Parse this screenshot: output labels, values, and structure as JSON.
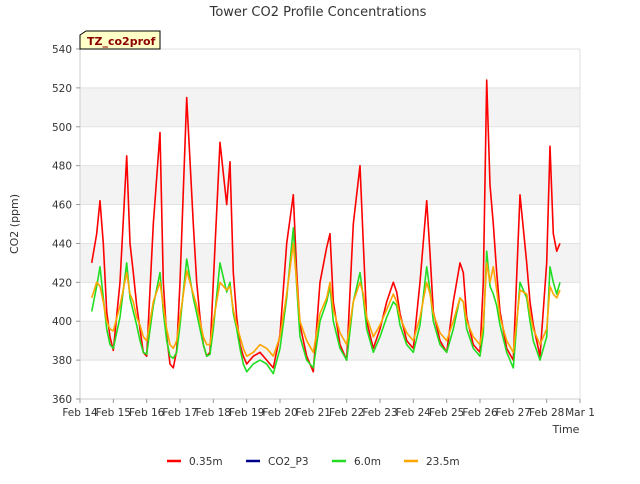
{
  "chart_data": {
    "type": "line",
    "title": "Tower CO2 Profile Concentrations",
    "badge": "TZ_co2prof",
    "xlabel": "Time",
    "ylabel": "CO2 (ppm)",
    "ylim": [
      360,
      540
    ],
    "yticks": [
      360,
      380,
      400,
      420,
      440,
      460,
      480,
      500,
      520,
      540
    ],
    "xlim": [
      0,
      15
    ],
    "x_units": "days since Feb 14",
    "xticks": [
      {
        "pos": 0,
        "label": "Feb 14"
      },
      {
        "pos": 1,
        "label": "Feb 15"
      },
      {
        "pos": 2,
        "label": "Feb 16"
      },
      {
        "pos": 3,
        "label": "Feb 17"
      },
      {
        "pos": 4,
        "label": "Feb 18"
      },
      {
        "pos": 5,
        "label": "Feb 19"
      },
      {
        "pos": 6,
        "label": "Feb 20"
      },
      {
        "pos": 7,
        "label": "Feb 21"
      },
      {
        "pos": 8,
        "label": "Feb 22"
      },
      {
        "pos": 9,
        "label": "Feb 23"
      },
      {
        "pos": 10,
        "label": "Feb 24"
      },
      {
        "pos": 11,
        "label": "Feb 25"
      },
      {
        "pos": 12,
        "label": "Feb 26"
      },
      {
        "pos": 13,
        "label": "Feb 27"
      },
      {
        "pos": 14,
        "label": "Feb 28"
      },
      {
        "pos": 15,
        "label": "Mar 1"
      }
    ],
    "grid": true,
    "legend_position": "bottom-center",
    "series": [
      {
        "name": "0.35m",
        "color": "#ff0000",
        "x": [
          0.35,
          0.5,
          0.6,
          0.7,
          0.8,
          0.9,
          1.0,
          1.2,
          1.4,
          1.5,
          1.6,
          1.7,
          1.8,
          1.9,
          2.0,
          2.2,
          2.4,
          2.5,
          2.6,
          2.7,
          2.8,
          2.9,
          3.0,
          3.2,
          3.4,
          3.5,
          3.6,
          3.7,
          3.8,
          3.9,
          4.0,
          4.2,
          4.4,
          4.5,
          4.6,
          4.7,
          4.8,
          4.9,
          5.0,
          5.2,
          5.4,
          5.6,
          5.8,
          6.0,
          6.2,
          6.4,
          6.5,
          6.6,
          6.8,
          7.0,
          7.2,
          7.4,
          7.5,
          7.6,
          7.8,
          8.0,
          8.2,
          8.4,
          8.5,
          8.6,
          8.8,
          9.0,
          9.2,
          9.4,
          9.5,
          9.6,
          9.8,
          10.0,
          10.2,
          10.4,
          10.5,
          10.6,
          10.8,
          11.0,
          11.2,
          11.4,
          11.5,
          11.6,
          11.8,
          12.0,
          12.1,
          12.2,
          12.3,
          12.4,
          12.5,
          12.6,
          12.8,
          13.0,
          13.2,
          13.4,
          13.5,
          13.6,
          13.8,
          14.0,
          14.1,
          14.2,
          14.3,
          14.4
        ],
        "y": [
          430,
          445,
          462,
          440,
          405,
          392,
          385,
          420,
          485,
          440,
          425,
          408,
          396,
          384,
          382,
          450,
          497,
          420,
          392,
          378,
          376,
          385,
          420,
          515,
          450,
          420,
          402,
          388,
          382,
          384,
          420,
          492,
          460,
          482,
          425,
          402,
          388,
          382,
          378,
          382,
          384,
          380,
          376,
          393,
          440,
          465,
          425,
          398,
          382,
          374,
          420,
          438,
          445,
          410,
          388,
          380,
          450,
          480,
          440,
          400,
          386,
          396,
          410,
          420,
          415,
          404,
          390,
          386,
          420,
          462,
          435,
          405,
          390,
          384,
          410,
          430,
          425,
          402,
          388,
          384,
          420,
          524,
          470,
          450,
          425,
          405,
          386,
          380,
          465,
          430,
          410,
          398,
          382,
          430,
          490,
          445,
          436,
          440
        ]
      },
      {
        "name": "CO2_P3",
        "color": "#00008b",
        "x": [],
        "y": []
      },
      {
        "name": "6.0m",
        "color": "#22dd22",
        "x": [
          0.35,
          0.5,
          0.6,
          0.7,
          0.8,
          0.9,
          1.0,
          1.2,
          1.4,
          1.5,
          1.6,
          1.7,
          1.8,
          1.9,
          2.0,
          2.2,
          2.4,
          2.5,
          2.6,
          2.7,
          2.8,
          2.9,
          3.0,
          3.2,
          3.4,
          3.5,
          3.6,
          3.7,
          3.8,
          3.9,
          4.0,
          4.2,
          4.4,
          4.5,
          4.6,
          4.7,
          4.8,
          4.9,
          5.0,
          5.2,
          5.4,
          5.6,
          5.8,
          6.0,
          6.2,
          6.4,
          6.5,
          6.6,
          6.8,
          7.0,
          7.2,
          7.4,
          7.5,
          7.6,
          7.8,
          8.0,
          8.2,
          8.4,
          8.5,
          8.6,
          8.8,
          9.0,
          9.2,
          9.4,
          9.5,
          9.6,
          9.8,
          10.0,
          10.2,
          10.4,
          10.5,
          10.6,
          10.8,
          11.0,
          11.2,
          11.4,
          11.5,
          11.6,
          11.8,
          12.0,
          12.1,
          12.2,
          12.3,
          12.4,
          12.5,
          12.6,
          12.8,
          13.0,
          13.2,
          13.4,
          13.5,
          13.6,
          13.8,
          14.0,
          14.1,
          14.2,
          14.3,
          14.4
        ],
        "y": [
          405,
          418,
          428,
          412,
          396,
          388,
          386,
          402,
          430,
          412,
          405,
          398,
          390,
          384,
          383,
          408,
          425,
          405,
          390,
          382,
          381,
          384,
          398,
          432,
          412,
          404,
          396,
          388,
          382,
          383,
          396,
          430,
          415,
          420,
          404,
          396,
          386,
          378,
          374,
          378,
          380,
          378,
          373,
          386,
          412,
          448,
          418,
          392,
          380,
          376,
          400,
          410,
          418,
          400,
          386,
          380,
          410,
          425,
          412,
          396,
          384,
          392,
          402,
          410,
          408,
          398,
          388,
          384,
          398,
          428,
          416,
          400,
          388,
          384,
          396,
          412,
          410,
          396,
          386,
          382,
          394,
          436,
          418,
          414,
          408,
          398,
          384,
          376,
          420,
          412,
          400,
          390,
          380,
          392,
          428,
          420,
          414,
          420
        ]
      },
      {
        "name": "23.5m",
        "color": "#ffa500",
        "x": [
          0.35,
          0.5,
          0.6,
          0.7,
          0.8,
          0.9,
          1.0,
          1.2,
          1.4,
          1.5,
          1.6,
          1.7,
          1.8,
          1.9,
          2.0,
          2.2,
          2.4,
          2.5,
          2.6,
          2.7,
          2.8,
          2.9,
          3.0,
          3.2,
          3.4,
          3.5,
          3.6,
          3.7,
          3.8,
          3.9,
          4.0,
          4.2,
          4.4,
          4.5,
          4.6,
          4.7,
          4.8,
          4.9,
          5.0,
          5.2,
          5.4,
          5.6,
          5.8,
          6.0,
          6.2,
          6.4,
          6.5,
          6.6,
          6.8,
          7.0,
          7.2,
          7.4,
          7.5,
          7.6,
          7.8,
          8.0,
          8.2,
          8.4,
          8.5,
          8.6,
          8.8,
          9.0,
          9.2,
          9.4,
          9.5,
          9.6,
          9.8,
          10.0,
          10.2,
          10.4,
          10.5,
          10.6,
          10.8,
          11.0,
          11.2,
          11.4,
          11.5,
          11.6,
          11.8,
          12.0,
          12.1,
          12.2,
          12.3,
          12.4,
          12.5,
          12.6,
          12.8,
          13.0,
          13.2,
          13.4,
          13.5,
          13.6,
          13.8,
          14.0,
          14.1,
          14.2,
          14.3,
          14.4
        ],
        "y": [
          412,
          420,
          418,
          410,
          400,
          396,
          395,
          408,
          425,
          414,
          410,
          402,
          398,
          392,
          390,
          410,
          420,
          408,
          396,
          388,
          386,
          390,
          402,
          426,
          414,
          408,
          400,
          392,
          388,
          388,
          400,
          420,
          416,
          418,
          406,
          398,
          392,
          386,
          382,
          384,
          388,
          386,
          382,
          392,
          414,
          440,
          420,
          400,
          390,
          384,
          404,
          412,
          420,
          406,
          394,
          388,
          410,
          420,
          414,
          402,
          392,
          398,
          406,
          414,
          410,
          402,
          394,
          390,
          402,
          420,
          414,
          404,
          394,
          390,
          400,
          412,
          410,
          400,
          392,
          388,
          398,
          430,
          420,
          428,
          416,
          402,
          390,
          384,
          416,
          414,
          404,
          396,
          388,
          396,
          418,
          414,
          412,
          416
        ]
      }
    ]
  }
}
